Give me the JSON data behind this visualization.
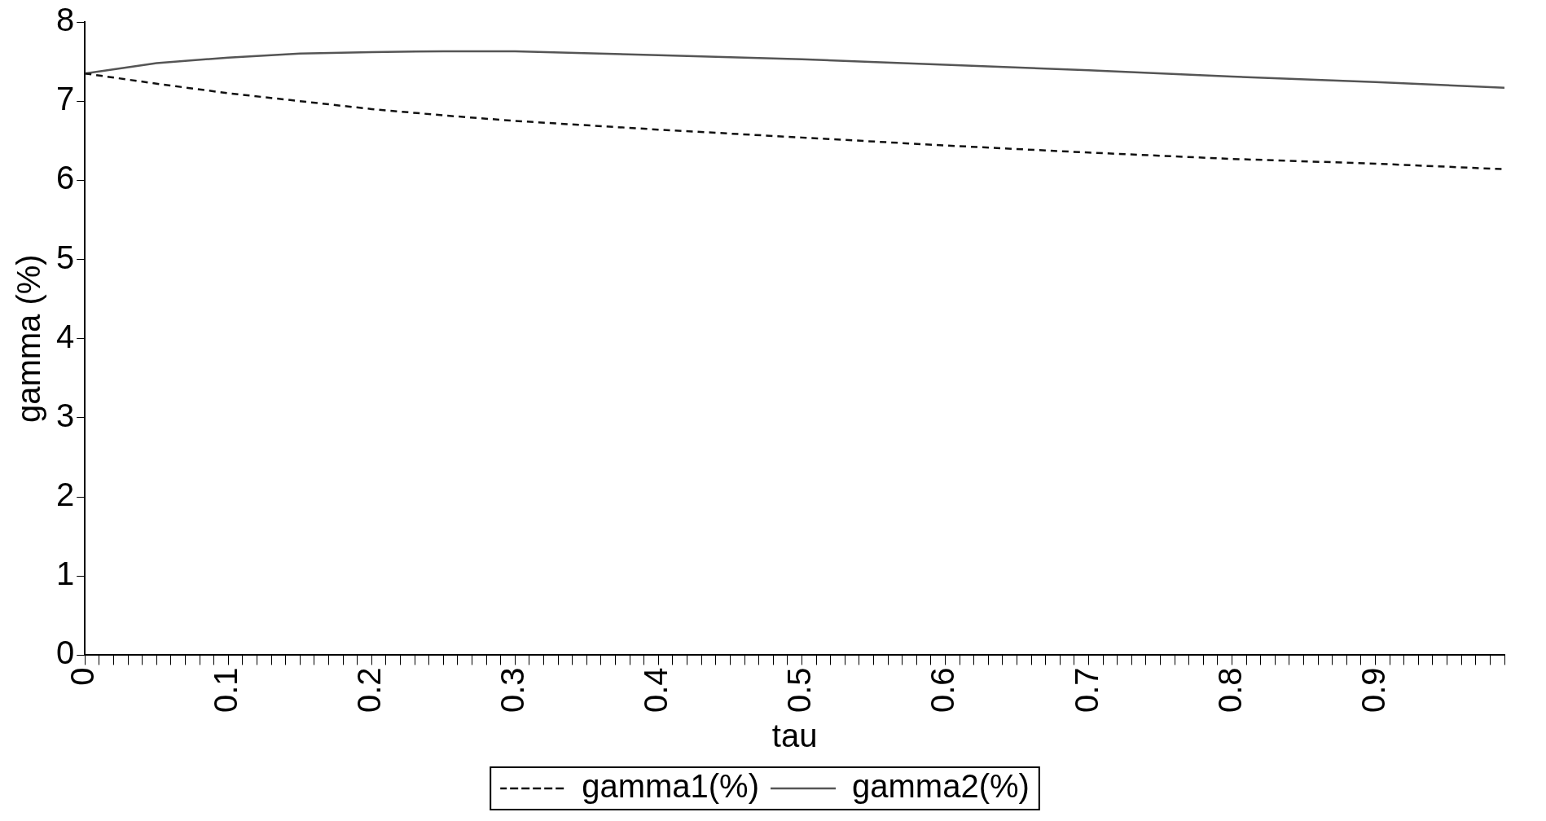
{
  "chart_data": {
    "type": "line",
    "xlabel": "tau",
    "ylabel": "gamma (%)",
    "xlim": [
      0,
      0.99
    ],
    "ylim": [
      0,
      8
    ],
    "yticks": [
      0,
      1,
      2,
      3,
      4,
      5,
      6,
      7,
      8
    ],
    "grid": false,
    "legend": "bottom",
    "marker": "none",
    "xticks": [
      0,
      {
        "value": 0.01,
        "label": null
      },
      {
        "value": 0.02,
        "label": null
      },
      {
        "value": 0.03,
        "label": null
      },
      {
        "value": 0.04,
        "label": null
      },
      {
        "value": 0.05,
        "label": null
      },
      {
        "value": 0.06,
        "label": null
      },
      {
        "value": 0.07,
        "label": null
      },
      {
        "value": 0.08,
        "label": null
      },
      {
        "value": 0.09,
        "label": null
      },
      0.1,
      {
        "value": 0.11,
        "label": null
      },
      {
        "value": 0.12,
        "label": null
      },
      {
        "value": 0.13,
        "label": null
      },
      {
        "value": 0.14,
        "label": null
      },
      {
        "value": 0.15,
        "label": null
      },
      {
        "value": 0.16,
        "label": null
      },
      {
        "value": 0.17,
        "label": null
      },
      {
        "value": 0.18,
        "label": null
      },
      {
        "value": 0.19,
        "label": null
      },
      0.2,
      {
        "value": 0.21,
        "label": null
      },
      {
        "value": 0.22,
        "label": null
      },
      {
        "value": 0.23,
        "label": null
      },
      {
        "value": 0.24,
        "label": null
      },
      {
        "value": 0.25,
        "label": null
      },
      {
        "value": 0.26,
        "label": null
      },
      {
        "value": 0.27,
        "label": null
      },
      {
        "value": 0.28,
        "label": null
      },
      {
        "value": 0.29,
        "label": null
      },
      0.3,
      {
        "value": 0.31,
        "label": null
      },
      {
        "value": 0.32,
        "label": null
      },
      {
        "value": 0.33,
        "label": null
      },
      {
        "value": 0.34,
        "label": null
      },
      {
        "value": 0.35,
        "label": null
      },
      {
        "value": 0.36,
        "label": null
      },
      {
        "value": 0.37,
        "label": null
      },
      {
        "value": 0.38,
        "label": null
      },
      {
        "value": 0.39,
        "label": null
      },
      0.4,
      {
        "value": 0.41,
        "label": null
      },
      {
        "value": 0.42,
        "label": null
      },
      {
        "value": 0.43,
        "label": null
      },
      {
        "value": 0.44,
        "label": null
      },
      {
        "value": 0.45,
        "label": null
      },
      {
        "value": 0.46,
        "label": null
      },
      {
        "value": 0.47,
        "label": null
      },
      {
        "value": 0.48,
        "label": null
      },
      {
        "value": 0.49,
        "label": null
      },
      0.5,
      {
        "value": 0.51,
        "label": null
      },
      {
        "value": 0.52,
        "label": null
      },
      {
        "value": 0.53,
        "label": null
      },
      {
        "value": 0.54,
        "label": null
      },
      {
        "value": 0.55,
        "label": null
      },
      {
        "value": 0.56,
        "label": null
      },
      {
        "value": 0.57,
        "label": null
      },
      {
        "value": 0.58,
        "label": null
      },
      {
        "value": 0.59,
        "label": null
      },
      0.6,
      {
        "value": 0.61,
        "label": null
      },
      {
        "value": 0.62,
        "label": null
      },
      {
        "value": 0.63,
        "label": null
      },
      {
        "value": 0.64,
        "label": null
      },
      {
        "value": 0.65,
        "label": null
      },
      {
        "value": 0.66,
        "label": null
      },
      {
        "value": 0.67,
        "label": null
      },
      {
        "value": 0.68,
        "label": null
      },
      {
        "value": 0.69,
        "label": null
      },
      0.7,
      {
        "value": 0.71,
        "label": null
      },
      {
        "value": 0.72,
        "label": null
      },
      {
        "value": 0.73,
        "label": null
      },
      {
        "value": 0.74,
        "label": null
      },
      {
        "value": 0.75,
        "label": null
      },
      {
        "value": 0.76,
        "label": null
      },
      {
        "value": 0.77,
        "label": null
      },
      {
        "value": 0.78,
        "label": null
      },
      {
        "value": 0.79,
        "label": null
      },
      0.8,
      {
        "value": 0.81,
        "label": null
      },
      {
        "value": 0.82,
        "label": null
      },
      {
        "value": 0.83,
        "label": null
      },
      {
        "value": 0.84,
        "label": null
      },
      {
        "value": 0.85,
        "label": null
      },
      {
        "value": 0.86,
        "label": null
      },
      {
        "value": 0.87,
        "label": null
      },
      {
        "value": 0.88,
        "label": null
      },
      {
        "value": 0.89,
        "label": null
      },
      0.9,
      {
        "value": 0.91,
        "label": null
      },
      {
        "value": 0.92,
        "label": null
      },
      {
        "value": 0.93,
        "label": null
      },
      {
        "value": 0.94,
        "label": null
      },
      {
        "value": 0.95,
        "label": null
      },
      {
        "value": 0.96,
        "label": null
      },
      {
        "value": 0.97,
        "label": null
      },
      {
        "value": 0.98,
        "label": null
      },
      {
        "value": 0.99,
        "label": null
      }
    ],
    "x": [
      0,
      0.05,
      0.1,
      0.15,
      0.2,
      0.25,
      0.3,
      0.4,
      0.5,
      0.6,
      0.7,
      0.8,
      0.9,
      0.99
    ],
    "series": [
      {
        "name": "gamma1(%)",
        "color": "#111111",
        "line_style": "dashed",
        "values": [
          7.35,
          7.22,
          7.1,
          7.0,
          6.9,
          6.82,
          6.75,
          6.64,
          6.54,
          6.44,
          6.35,
          6.27,
          6.21,
          6.14
        ]
      },
      {
        "name": "gamma2(%)",
        "color": "#555555",
        "line_style": "solid",
        "values": [
          7.35,
          7.48,
          7.55,
          7.6,
          7.62,
          7.63,
          7.63,
          7.58,
          7.53,
          7.46,
          7.39,
          7.31,
          7.24,
          7.17
        ]
      }
    ]
  }
}
